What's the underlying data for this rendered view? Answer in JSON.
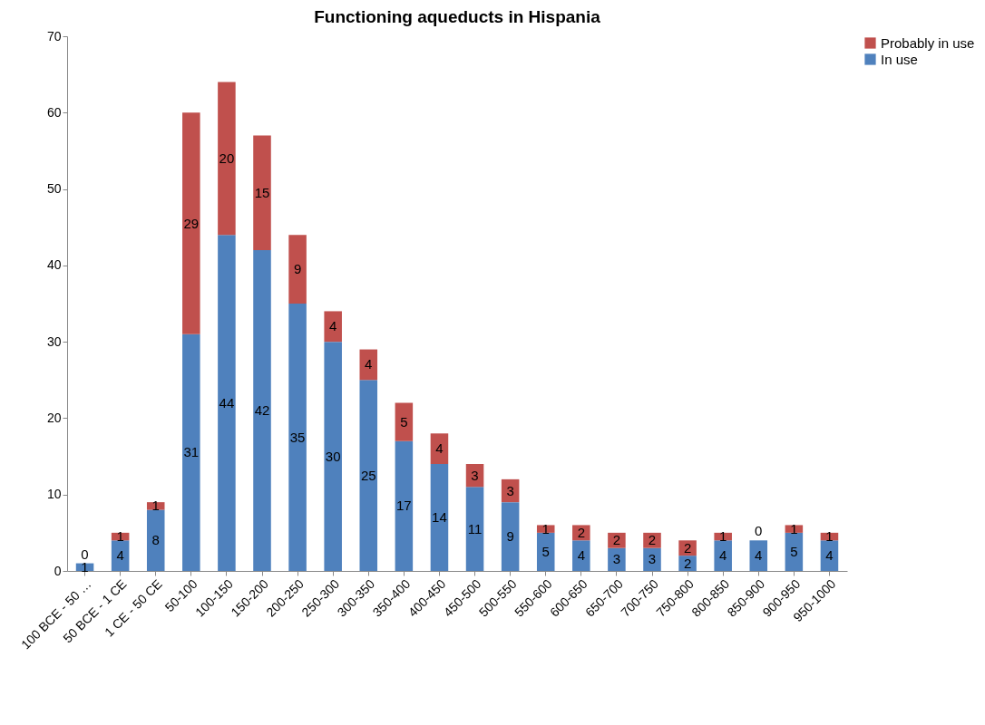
{
  "chart_data": {
    "type": "bar",
    "title": "Functioning aqueducts in Hispania",
    "stacked": true,
    "categories": [
      "100 BCE - 50 …",
      "50 BCE - 1 CE",
      "1 CE - 50 CE",
      "50-100",
      "100-150",
      "150-200",
      "200-250",
      "250-300",
      "300-350",
      "350-400",
      "400-450",
      "450-500",
      "500-550",
      "550-600",
      "600-650",
      "650-700",
      "700-750",
      "750-800",
      "800-850",
      "850-900",
      "900-950",
      "950-1000"
    ],
    "series": [
      {
        "name": "In use",
        "color": "#4f81bd",
        "values": [
          1,
          4,
          8,
          31,
          44,
          42,
          35,
          30,
          25,
          17,
          14,
          11,
          9,
          5,
          4,
          3,
          3,
          2,
          4,
          4,
          5,
          4
        ]
      },
      {
        "name": "Probably in use",
        "color": "#c0504d",
        "values": [
          0,
          1,
          1,
          29,
          20,
          15,
          9,
          4,
          4,
          5,
          4,
          3,
          3,
          1,
          2,
          2,
          2,
          2,
          1,
          0,
          1,
          1
        ]
      }
    ],
    "ylim": [
      0,
      70
    ],
    "yticks": [
      0,
      10,
      20,
      30,
      40,
      50,
      60,
      70
    ],
    "grid": false,
    "legend": "right",
    "data_labels": true
  }
}
